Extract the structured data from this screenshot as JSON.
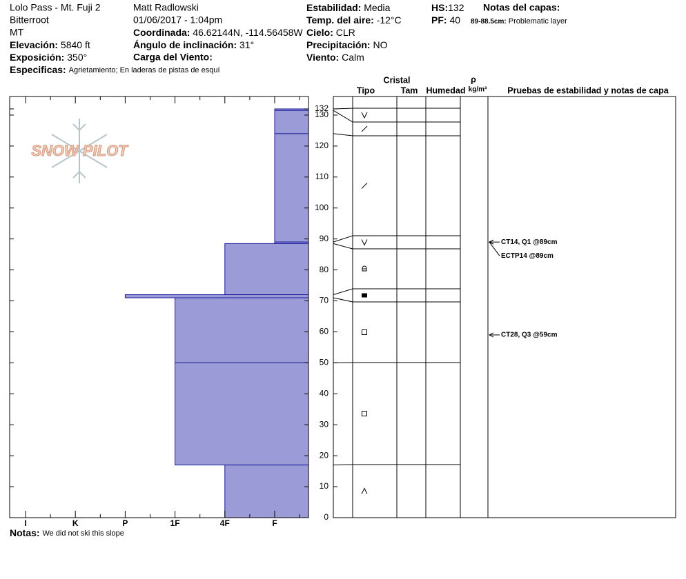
{
  "header": {
    "location": "Lolo Pass - Mt. Fuji 2",
    "range": "Bitterroot",
    "state": "MT",
    "elevation": {
      "label": "Elevación:",
      "value": "5840 ft"
    },
    "aspect": {
      "label": "Exposición:",
      "value": "350°"
    },
    "specifics": {
      "label": "Especificas:",
      "value": "Agrietamiento;  En laderas de pistas de esquí"
    },
    "observer": "Matt Radlowski",
    "datetime": "01/06/2017 - 1:04pm",
    "coordinates": {
      "label": "Coordinada:",
      "value": "46.62144N, -114.56458W"
    },
    "slope": {
      "label": "Ángulo de inclinación:",
      "value": "31°"
    },
    "wind_load": {
      "label": "Carga del Viento:"
    },
    "stability": {
      "label": "Estabilidad:",
      "value": "Media"
    },
    "air_temp": {
      "label": "Temp. del aire:",
      "value": "-12°C"
    },
    "sky": {
      "label": "Cielo:",
      "value": "CLR"
    },
    "precipitation": {
      "label": "Precipitación:",
      "value": "NO"
    },
    "wind": {
      "label": "Viento:",
      "value": "Calm"
    },
    "hs": {
      "label": "HS:",
      "value": 132
    },
    "pf": {
      "label": "PF:",
      "value": 40
    },
    "layer_notes": {
      "label": "Notas del capas:",
      "items": [
        {
          "range": "89-88.5cm:",
          "text": "Problematic layer"
        }
      ]
    }
  },
  "logo": "SNOW PILOT",
  "columns": {
    "crystal": "Cristal",
    "type": "Tipo",
    "size": "Tam",
    "moisture": "Humedad",
    "rho": "ρ",
    "density_unit": "kg/m³",
    "tests": "Pruebas de estabilidad y notas de capa"
  },
  "notes": {
    "label": "Notas:",
    "value": "We did not ski this slope"
  },
  "chart_data": {
    "type": "hardness-profile",
    "color": "#9b9bd8",
    "edge_color": "#1a1a9a",
    "categories": [
      "I",
      "K",
      "P",
      "1F",
      "4F",
      "F"
    ],
    "ylim": [
      0,
      136
    ],
    "yticks": [
      0,
      10,
      20,
      30,
      40,
      50,
      60,
      70,
      80,
      90,
      100,
      110,
      120,
      130,
      132
    ],
    "layers": [
      {
        "top": 132,
        "bottom": 131.5,
        "hardness": "F"
      },
      {
        "top": 131.5,
        "bottom": 124,
        "hardness": "F"
      },
      {
        "top": 124,
        "bottom": 89,
        "hardness": "F"
      },
      {
        "top": 89,
        "bottom": 88.5,
        "hardness": "F"
      },
      {
        "top": 88.5,
        "bottom": 72,
        "hardness": "4F"
      },
      {
        "top": 72,
        "bottom": 71,
        "hardness": "P"
      },
      {
        "top": 71,
        "bottom": 50,
        "hardness": "1F"
      },
      {
        "top": 50,
        "bottom": 17,
        "hardness": "1F"
      },
      {
        "top": 17,
        "bottom": 0,
        "hardness": "4F"
      }
    ],
    "tests": [
      {
        "text": "CT14, Q1 @89cm",
        "depth": 89
      },
      {
        "text": "ECTP14 @89cm",
        "depth": 89
      },
      {
        "text": "CT28, Q3 @59cm",
        "depth": 59
      }
    ]
  }
}
